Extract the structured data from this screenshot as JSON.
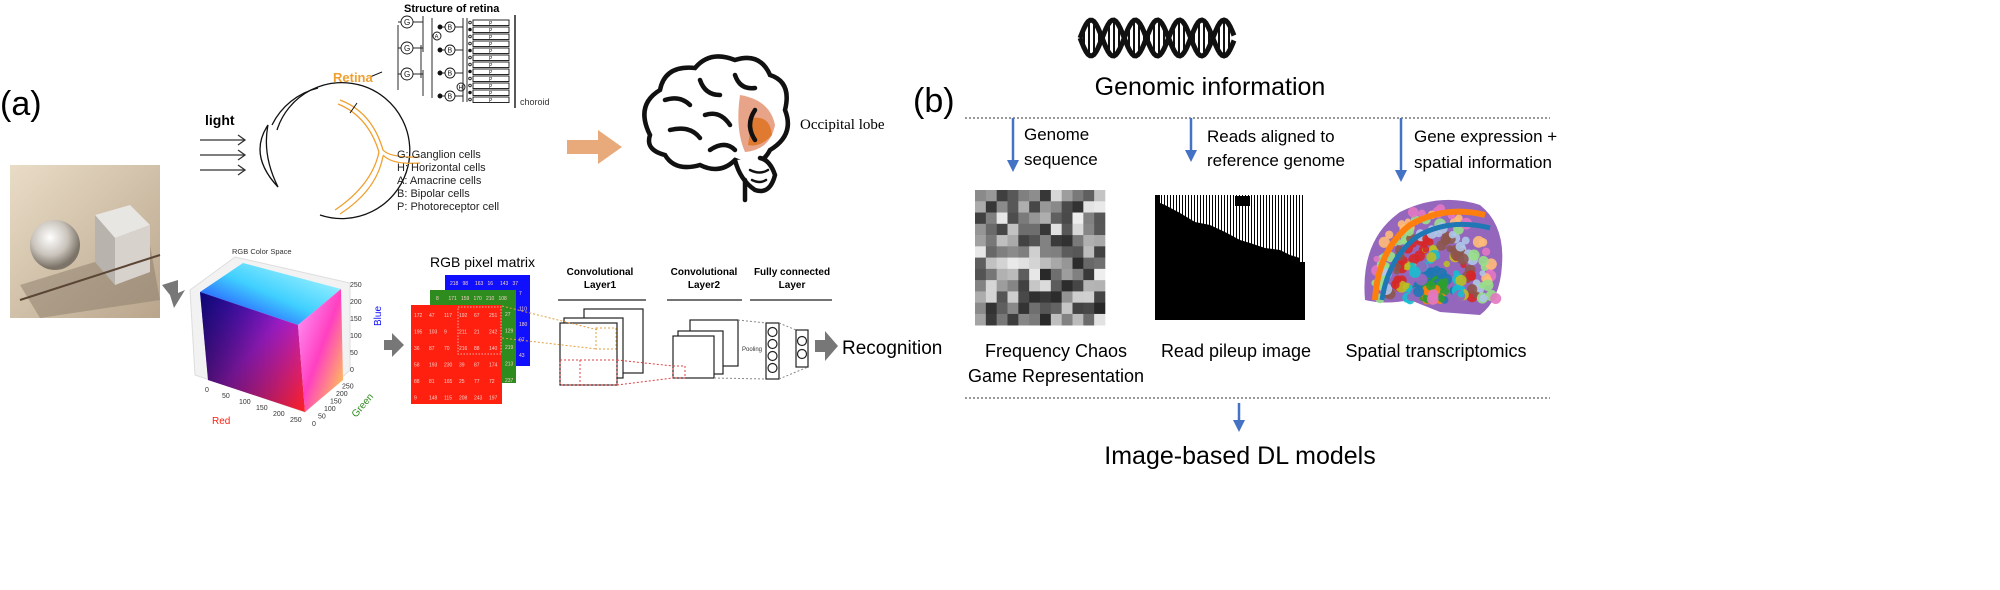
{
  "panel_a": {
    "label": "(a)",
    "light_label": "light",
    "retina_label": "Retina",
    "retina_structure_title": "Structure of retina",
    "cell_labels": {
      "G": "G",
      "A": "A",
      "B": "B",
      "H": "H",
      "P": "P"
    },
    "choroid_label": "choroid",
    "legend": [
      "G: Ganglion cells",
      "H: Horizontal cells",
      "A: Amacrine cells",
      "B: Bipolar cells",
      "P: Photoreceptor cell"
    ],
    "occipital_label": "Occipital lobe",
    "rgb_space_title": "RGB Color Space",
    "axis_red": "Red",
    "axis_green": "Green",
    "axis_blue": "Blue",
    "ticks": [
      "0",
      "50",
      "100",
      "150",
      "200",
      "250"
    ],
    "matrix_title": "RGB pixel matrix",
    "red_matrix": [
      [
        "172",
        "47",
        "117",
        "192",
        "67",
        "251"
      ],
      [
        "195",
        "103",
        "9",
        "211",
        "21",
        "242"
      ],
      [
        "36",
        "87",
        "70",
        "216",
        "88",
        "140"
      ],
      [
        "58",
        "193",
        "230",
        "39",
        "87",
        "174"
      ],
      [
        "88",
        "81",
        "165",
        "25",
        "77",
        "72"
      ],
      [
        "9",
        "148",
        "115",
        "208",
        "243",
        "197"
      ]
    ],
    "green_top_row": [
      "8",
      "171",
      "159",
      "170",
      "210",
      "108"
    ],
    "green_right_col": [
      "27",
      "129",
      "219",
      "213",
      "237"
    ],
    "blue_top_row": [
      "218",
      "98",
      "163",
      "16",
      "143",
      "37"
    ],
    "blue_right_col": [
      "7",
      "110",
      "180",
      "97",
      "43"
    ],
    "conv1_label": [
      "Convolutional",
      "Layer1"
    ],
    "conv2_label": [
      "Convolutional",
      "Layer2"
    ],
    "fc_label": [
      "Fully connected",
      "Layer"
    ],
    "pooling_label": "Pooling",
    "recognition_label": "Recognition",
    "colors": {
      "retina": "#f0a030",
      "arrow_orange": "#e8aa7a",
      "arrow_grey": "#777777",
      "red": "#ff2010",
      "green": "#2e8b1e",
      "blue": "#1010ff"
    }
  },
  "panel_b": {
    "label": "(b)",
    "title": "Genomic information",
    "branches": [
      {
        "input": [
          "Genome",
          "sequence"
        ],
        "caption": [
          "Frequency Chaos",
          "Game Representation"
        ]
      },
      {
        "input": [
          "Reads aligned to",
          "reference genome"
        ],
        "caption": [
          "Read pileup image"
        ]
      },
      {
        "input": [
          "Gene expression +",
          "spatial information"
        ],
        "caption": [
          "Spatial transcriptomics"
        ]
      }
    ],
    "output": "Image-based DL models",
    "colors": {
      "arrow": "#4472c4"
    }
  }
}
